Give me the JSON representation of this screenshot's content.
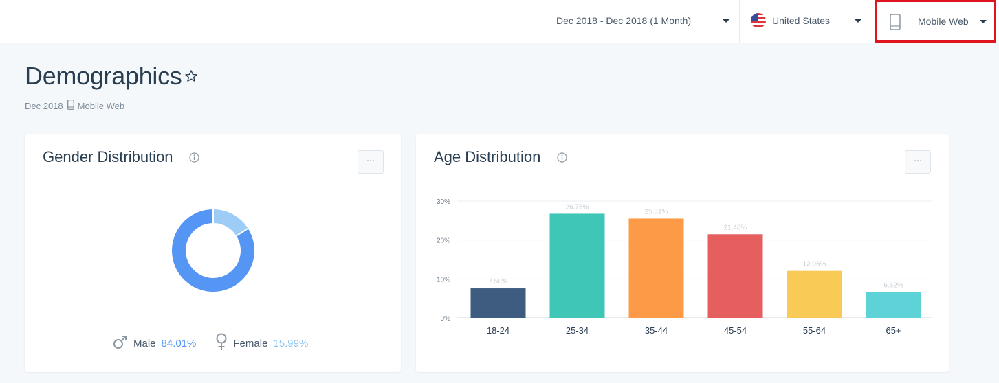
{
  "topbar": {
    "date_range": "Dec 2018 - Dec 2018 (1 Month)",
    "country": "United States",
    "device": "Mobile Web"
  },
  "header": {
    "title": "Demographics",
    "sub_date": "Dec 2018",
    "sub_device": "Mobile Web"
  },
  "gender": {
    "title": "Gender Distribution",
    "menu_label": "···",
    "male_label": "Male",
    "male_value": "84.01%",
    "female_label": "Female",
    "female_value": "15.99%",
    "colors": {
      "male": "#5596f5",
      "female": "#9dcdf6"
    }
  },
  "age": {
    "title": "Age Distribution",
    "menu_label": "···"
  },
  "chart_data": [
    {
      "type": "pie",
      "categories": [
        "Male",
        "Female"
      ],
      "values": [
        84.01,
        15.99
      ],
      "title": "Gender Distribution"
    },
    {
      "type": "bar",
      "title": "Age Distribution",
      "categories": [
        "18-24",
        "25-34",
        "35-44",
        "45-54",
        "55-64",
        "65+"
      ],
      "values": [
        7.58,
        26.75,
        25.51,
        21.48,
        12.06,
        6.62
      ],
      "value_labels": [
        "7.58%",
        "26.75%",
        "25.51%",
        "21.48%",
        "12.06%",
        "6.62%"
      ],
      "yticks": [
        "0%",
        "10%",
        "20%",
        "30%"
      ],
      "ylim": [
        0,
        30
      ],
      "colors": [
        "#3d5c80",
        "#40c6b6",
        "#fd9a47",
        "#e55f5f",
        "#f9ca55",
        "#5dd3d8"
      ],
      "grid": true
    }
  ]
}
